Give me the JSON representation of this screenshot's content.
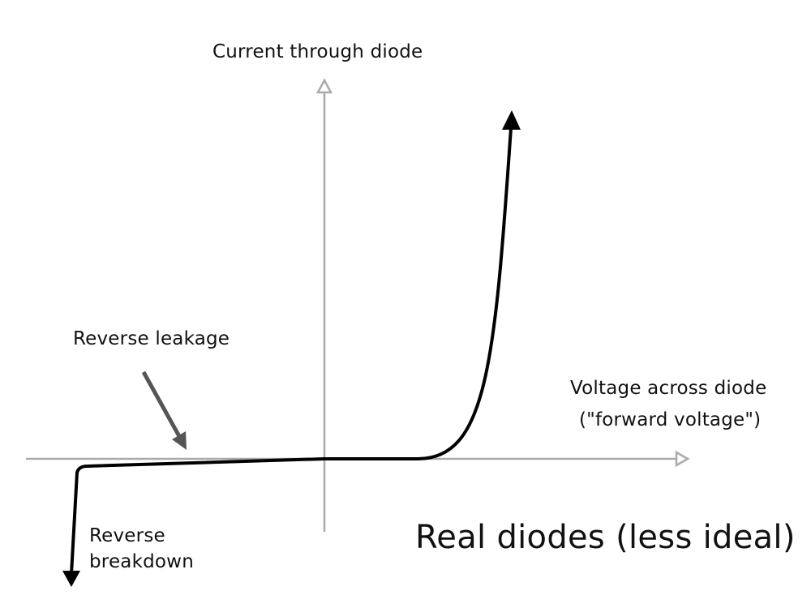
{
  "diagram": {
    "y_axis_label": "Current through diode",
    "x_axis_label_line1": "Voltage across diode",
    "x_axis_label_line2": "(\"forward voltage\")",
    "annotation_leakage": "Reverse leakage",
    "annotation_breakdown_line1": "Reverse",
    "annotation_breakdown_line2": "breakdown",
    "title": "Real diodes (less ideal)",
    "colors": {
      "axis": "#aaaaaa",
      "curve": "#000000",
      "pointer": "#555555",
      "text": "#111111"
    }
  }
}
